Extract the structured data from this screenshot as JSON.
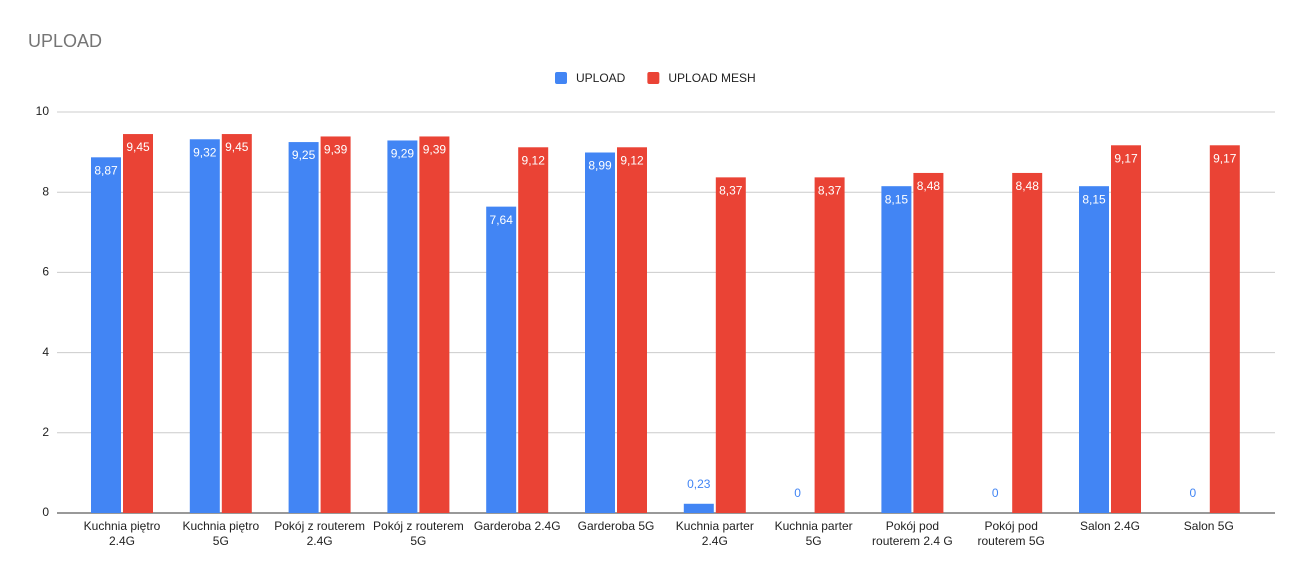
{
  "chart_data": {
    "type": "bar",
    "title": "UPLOAD",
    "categories": [
      "Kuchnia piętro 2.4G",
      "Kuchnia piętro 5G",
      "Pokój z routerem 2.4G",
      "Pokój z routerem 5G",
      "Garderoba 2.4G",
      "Garderoba 5G",
      "Kuchnia parter 2.4G",
      "Kuchnia parter 5G",
      "Pokój pod routerem 2.4 G",
      "Pokój pod routerem 5G",
      "Salon 2.4G",
      "Salon 5G"
    ],
    "series": [
      {
        "name": "UPLOAD",
        "color": "#4285f4",
        "values": [
          8.87,
          9.32,
          9.25,
          9.29,
          7.64,
          8.99,
          0.23,
          0,
          8.15,
          0,
          8.15,
          0
        ],
        "value_labels": [
          "8,87",
          "9,32",
          "9,25",
          "9,29",
          "7,64",
          "8,99",
          "0,23",
          "0",
          "8,15",
          "0",
          "8,15",
          "0"
        ]
      },
      {
        "name": "UPLOAD MESH",
        "color": "#ea4335",
        "values": [
          9.45,
          9.45,
          9.39,
          9.39,
          9.12,
          9.12,
          8.37,
          8.37,
          8.48,
          8.48,
          9.17,
          9.17
        ],
        "value_labels": [
          "9,45",
          "9,45",
          "9,39",
          "9,39",
          "9,12",
          "9,12",
          "8,37",
          "8,37",
          "8,48",
          "8,48",
          "9,17",
          "9,17"
        ]
      }
    ],
    "ylim": [
      0,
      10
    ],
    "yticks": [
      0,
      2,
      4,
      6,
      8,
      10
    ],
    "grid": true,
    "legend": "top"
  }
}
